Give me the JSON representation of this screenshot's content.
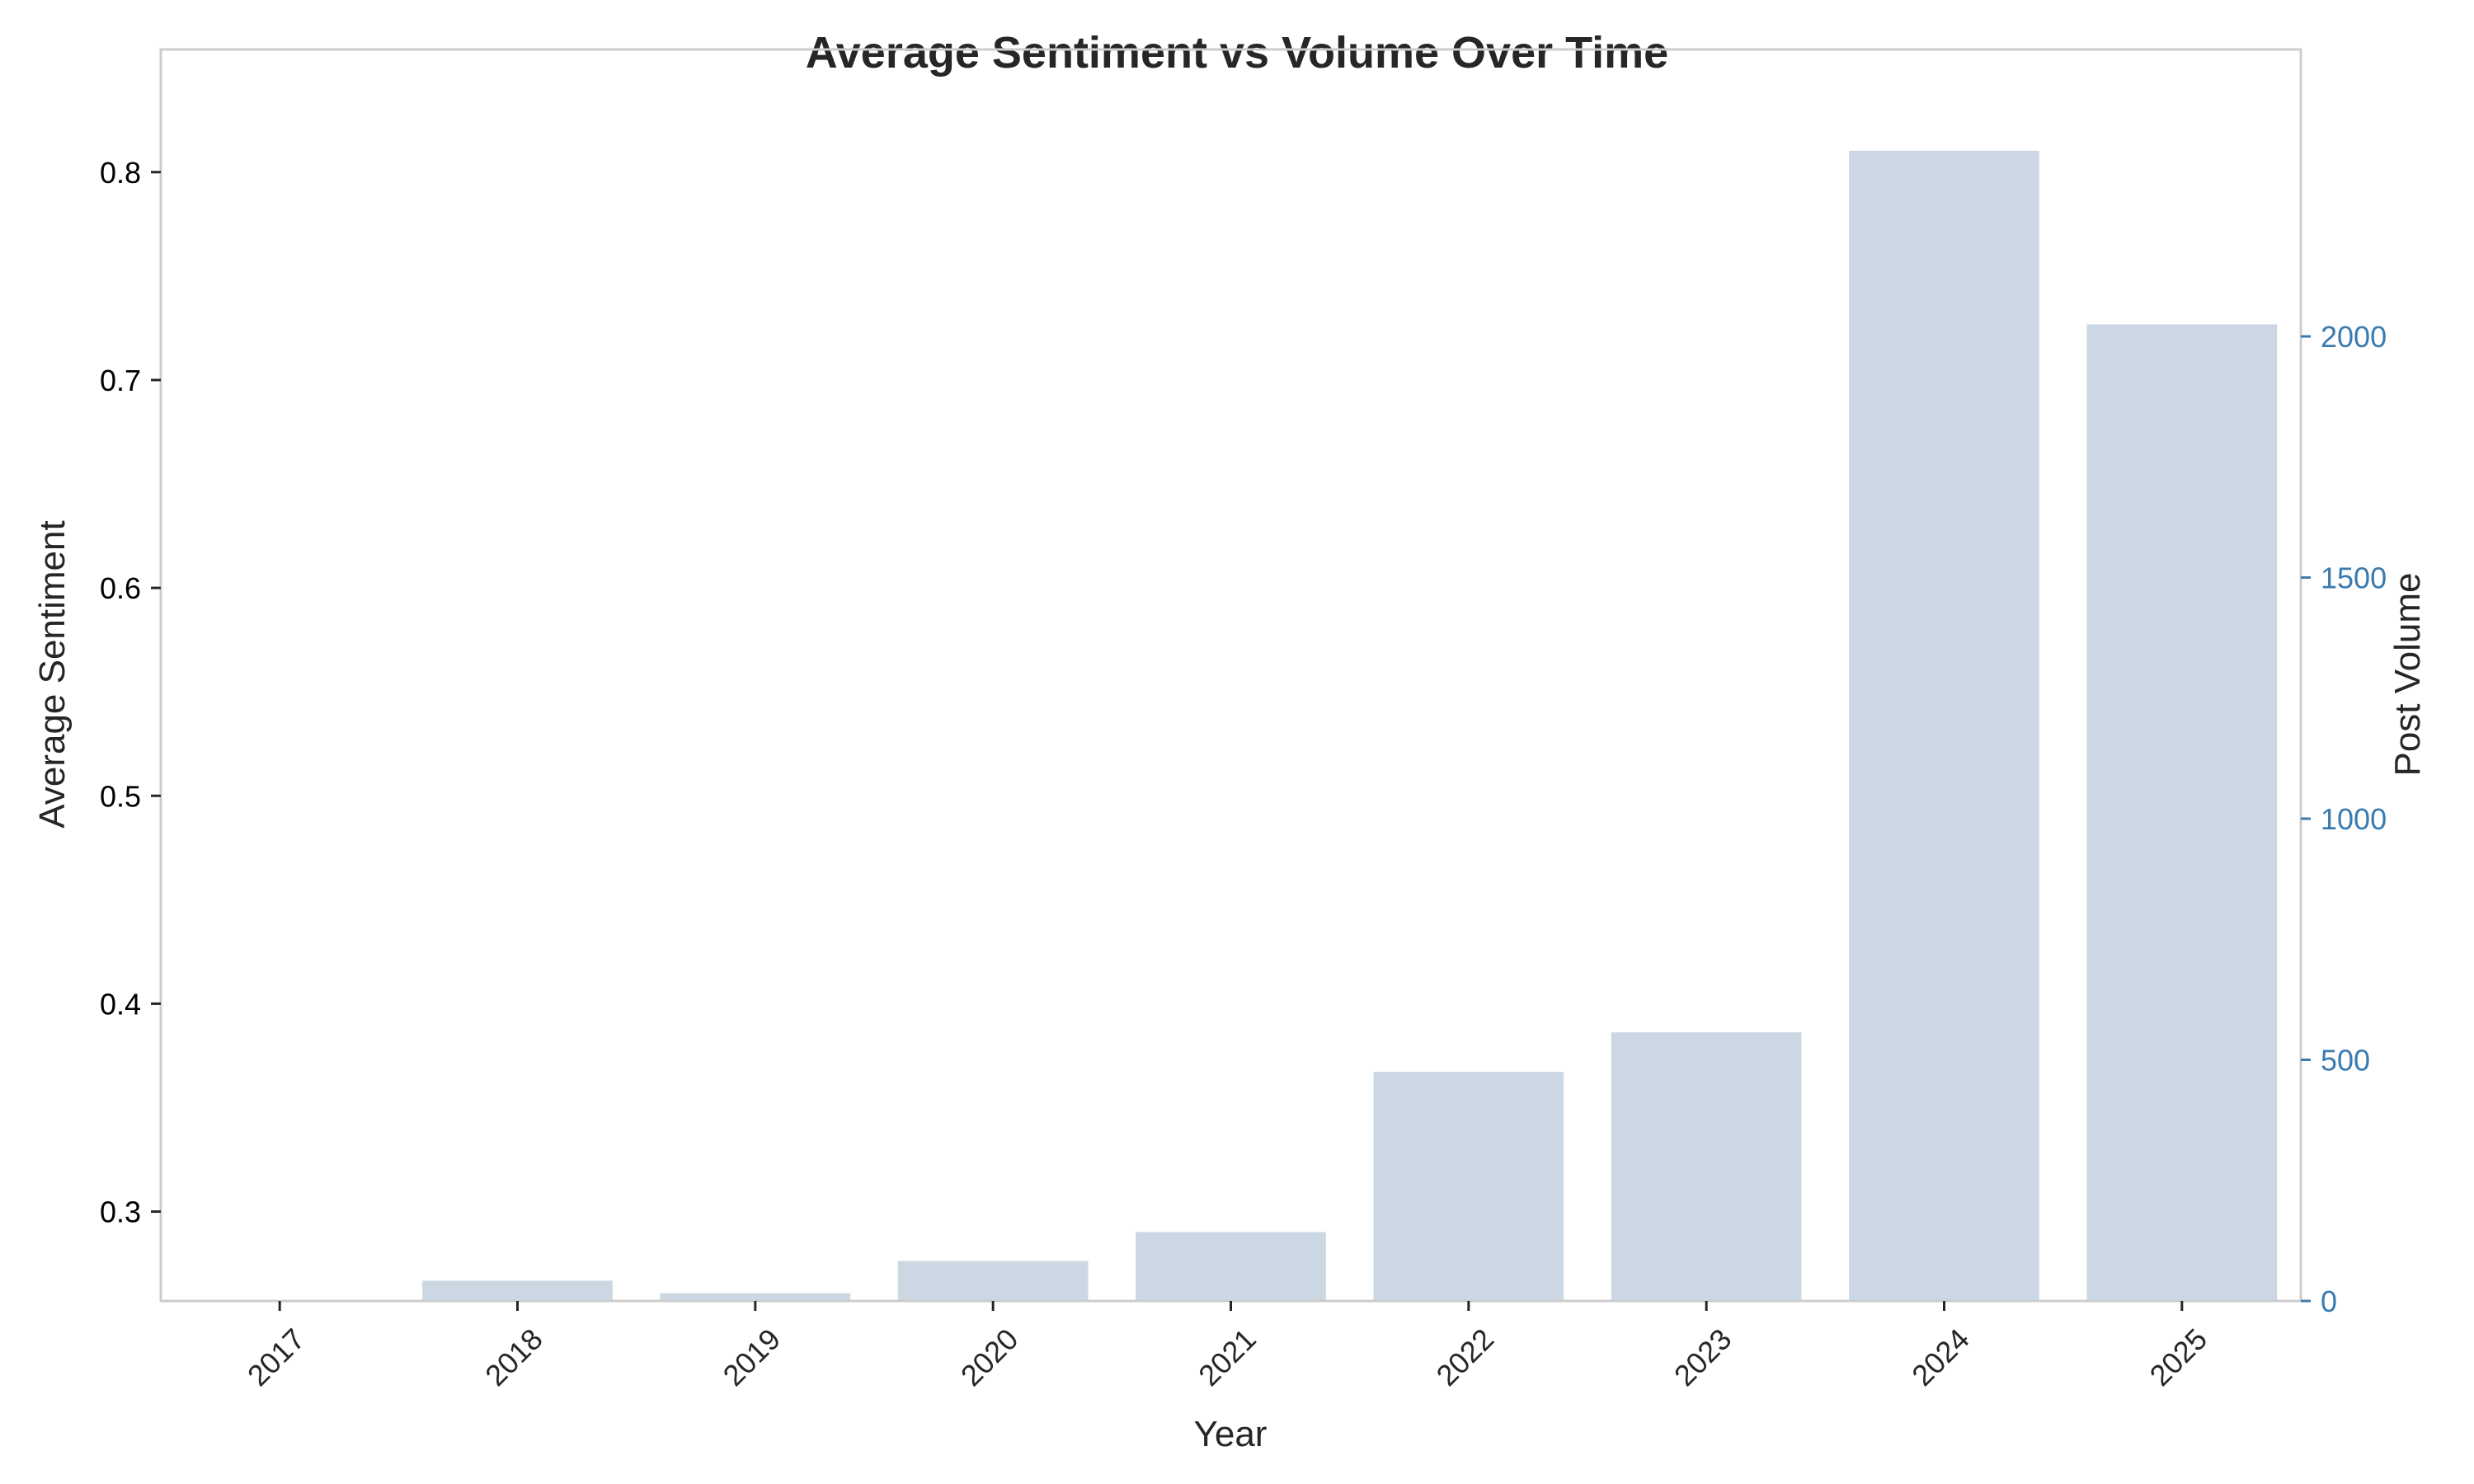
{
  "chart_data": {
    "type": "bar",
    "title": "Average Sentiment vs Volume Over Time",
    "xlabel": "Year",
    "ylabel_left": "Average Sentiment",
    "ylabel_right": "Post Volume",
    "categories": [
      "2017",
      "2018",
      "2019",
      "2020",
      "2021",
      "2022",
      "2023",
      "2024",
      "2025"
    ],
    "series": [
      {
        "axis": "right",
        "values": [
          2,
          42,
          16,
          83,
          143,
          475,
          557,
          2385,
          2025
        ],
        "color": "#cbd8e4"
      }
    ],
    "y_left": {
      "range": [
        0.257,
        0.859
      ],
      "ticks": [
        0.3,
        0.4,
        0.5,
        0.6,
        0.7,
        0.8
      ],
      "tick_labels": [
        "0.3",
        "0.4",
        "0.5",
        "0.6",
        "0.7",
        "0.8"
      ]
    },
    "y_right": {
      "range": [
        0,
        2595
      ],
      "ticks": [
        0,
        500,
        1000,
        1500,
        2000
      ],
      "tick_labels": [
        "0",
        "500",
        "1000",
        "1500",
        "2000"
      ],
      "tick_color": "#3a7bb0"
    },
    "grid": false,
    "legend": "none"
  }
}
